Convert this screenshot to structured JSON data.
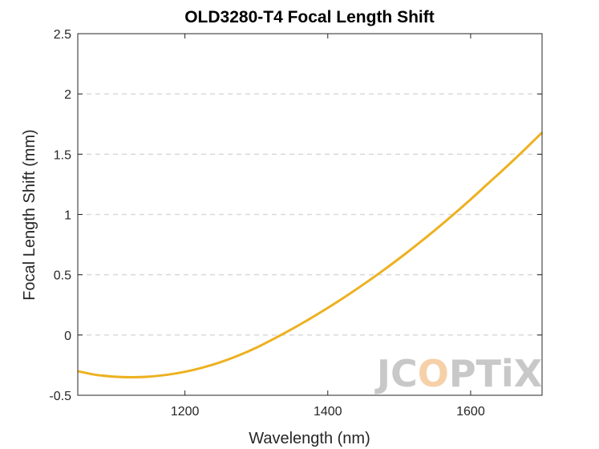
{
  "chart_data": {
    "type": "line",
    "title": "OLD3280-T4 Focal Length Shift",
    "xlabel": "Wavelength (nm)",
    "ylabel": "Focal Length Shift (mm)",
    "xlim": [
      1050,
      1700
    ],
    "ylim": [
      -0.5,
      2.5
    ],
    "xticks": [
      1200,
      1400,
      1600
    ],
    "xtick_labels": [
      "1200",
      "1400",
      "1600"
    ],
    "yticks": [
      -0.5,
      0,
      0.5,
      1,
      1.5,
      2,
      2.5
    ],
    "ytick_labels": [
      "-0.5",
      "0",
      "0.5",
      "1",
      "1.5",
      "2",
      "2.5"
    ],
    "grid": "y-dashed",
    "series": [
      {
        "color": "#EDB120",
        "x": [
          1050,
          1075,
          1100,
          1125,
          1150,
          1175,
          1200,
          1225,
          1250,
          1275,
          1300,
          1325,
          1350,
          1375,
          1400,
          1425,
          1450,
          1475,
          1500,
          1525,
          1550,
          1575,
          1600,
          1625,
          1650,
          1675,
          1700
        ],
        "y": [
          -0.3,
          -0.33,
          -0.345,
          -0.35,
          -0.345,
          -0.33,
          -0.305,
          -0.27,
          -0.225,
          -0.17,
          -0.105,
          -0.03,
          0.05,
          0.135,
          0.225,
          0.32,
          0.42,
          0.525,
          0.635,
          0.75,
          0.87,
          0.995,
          1.125,
          1.26,
          1.395,
          1.535,
          1.68
        ]
      }
    ]
  },
  "watermark": {
    "parts": [
      "JC",
      "O",
      "PTiX"
    ],
    "colors": [
      "#bfbfbf",
      "#f5c89a",
      "#bfbfbf"
    ]
  }
}
